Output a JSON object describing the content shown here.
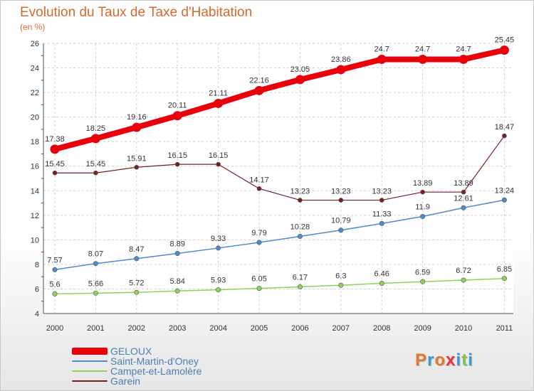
{
  "header": {
    "title": "Evolution du Taux de Taxe d'Habitation",
    "unit": "(en %)"
  },
  "brand": {
    "letters": [
      "P",
      "r",
      "o",
      "x",
      "i",
      "t",
      "i"
    ],
    "colors": [
      "#e8772e",
      "#3a9bd6",
      "#e8772e",
      "#e8343a",
      "#3a9bd6",
      "#8bc34a",
      "#3a9bd6"
    ]
  },
  "chart_data": {
    "type": "line",
    "x": [
      "2000",
      "2001",
      "2002",
      "2003",
      "2004",
      "2005",
      "2006",
      "2007",
      "2008",
      "2009",
      "2010",
      "2011"
    ],
    "ylim": [
      4,
      26
    ],
    "yticks": [
      4,
      6,
      8,
      10,
      12,
      14,
      16,
      18,
      20,
      22,
      24,
      26
    ],
    "grid": true,
    "legend_position": "bottom-left",
    "series": [
      {
        "name": "GELOUX",
        "color": "#e8000b",
        "values": [
          17.38,
          18.25,
          19.16,
          20.11,
          21.11,
          22.16,
          23.05,
          23.86,
          24.7,
          24.7,
          24.7,
          25.45
        ],
        "labels": [
          "17.38",
          "18.25",
          "19.16",
          "20.11",
          "21.11",
          "22.16",
          "23.05",
          "23.86",
          "24.7",
          "24.7",
          "24.7",
          "25.45"
        ]
      },
      {
        "name": "Saint-Martin-d'Oney",
        "color": "#4a8ccc",
        "values": [
          7.57,
          8.07,
          8.47,
          8.89,
          9.33,
          9.79,
          10.28,
          10.79,
          11.33,
          11.9,
          12.61,
          13.24
        ],
        "labels": [
          "7.57",
          "8.07",
          "8.47",
          "8.89",
          "9.33",
          "9.79",
          "10.28",
          "10.79",
          "11.33",
          "11.9",
          "12.61",
          "13.24"
        ]
      },
      {
        "name": "Campet-et-Lamolère",
        "color": "#8fd45a",
        "values": [
          5.6,
          5.66,
          5.72,
          5.84,
          5.93,
          6.05,
          6.17,
          6.3,
          6.46,
          6.59,
          6.72,
          6.85
        ],
        "labels": [
          "5.6",
          "5.66",
          "5.72",
          "5.84",
          "5.93",
          "6.05",
          "6.17",
          "6.3",
          "6.46",
          "6.59",
          "6.72",
          "6.85"
        ]
      },
      {
        "name": "Garein",
        "color": "#7a1f22",
        "values": [
          15.45,
          15.45,
          15.91,
          16.15,
          16.15,
          14.17,
          13.23,
          13.23,
          13.23,
          13.89,
          13.89,
          18.47
        ],
        "labels": [
          "15.45",
          "15.45",
          "15.91",
          "16.15",
          "16.15",
          "14.17",
          "13.23",
          "13.23",
          "13.23",
          "13.89",
          "13.89",
          "18.47"
        ]
      }
    ]
  }
}
